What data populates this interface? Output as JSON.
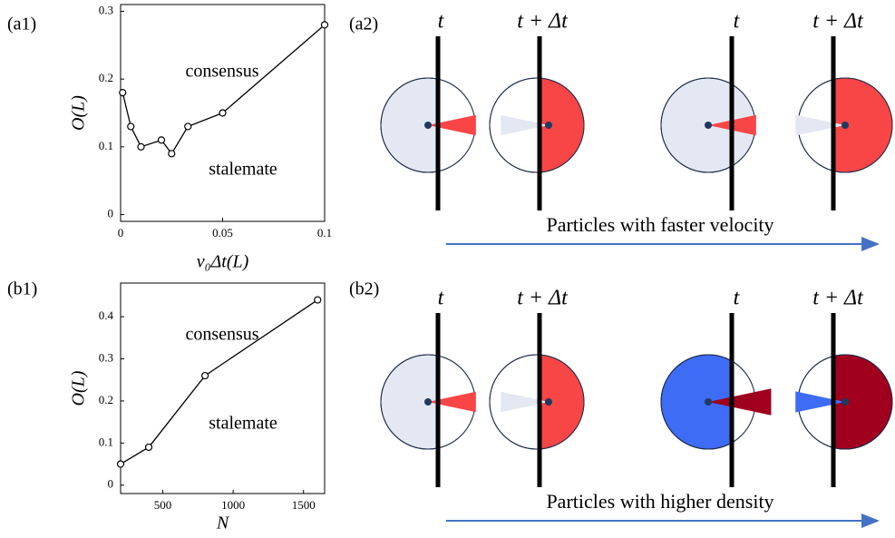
{
  "chart_data": [
    {
      "type": "line",
      "title": "(a1)",
      "y_label": "O(L)",
      "x_label": "v₀Δt(L)",
      "annotations": [
        "consensus",
        "stalemate"
      ],
      "x": [
        0.001,
        0.005,
        0.01,
        0.02,
        0.025,
        0.033,
        0.05,
        0.1
      ],
      "values": [
        0.18,
        0.13,
        0.1,
        0.11,
        0.09,
        0.13,
        0.15,
        0.28
      ],
      "xlim": [
        0,
        0.1
      ],
      "ylim": [
        -0.01,
        0.31
      ],
      "xticks": [
        0,
        0.05,
        0.1
      ],
      "yticks": [
        0,
        0.1,
        0.2,
        0.3
      ],
      "color": "#000000"
    },
    {
      "type": "line",
      "title": "(b1)",
      "y_label": "O(L)",
      "x_label": "N",
      "annotations": [
        "consensus",
        "stalemate"
      ],
      "x": [
        200,
        400,
        800,
        1600
      ],
      "values": [
        0.05,
        0.09,
        0.26,
        0.44
      ],
      "xlim": [
        200,
        1650
      ],
      "ylim": [
        -0.02,
        0.48
      ],
      "xticks": [
        500,
        1000,
        1500
      ],
      "yticks": [
        0,
        0.1,
        0.2,
        0.3,
        0.4
      ],
      "color": "#000000"
    }
  ],
  "diagrams": [
    {
      "label": "(a2)",
      "time_labels": [
        "t",
        "t + Δt",
        "t",
        "t + Δt"
      ],
      "caption": "Particles with faster velocity"
    },
    {
      "label": "(b2)",
      "time_labels": [
        "t",
        "t + Δt",
        "t",
        "t + Δt"
      ],
      "caption": "Particles with higher density"
    }
  ]
}
